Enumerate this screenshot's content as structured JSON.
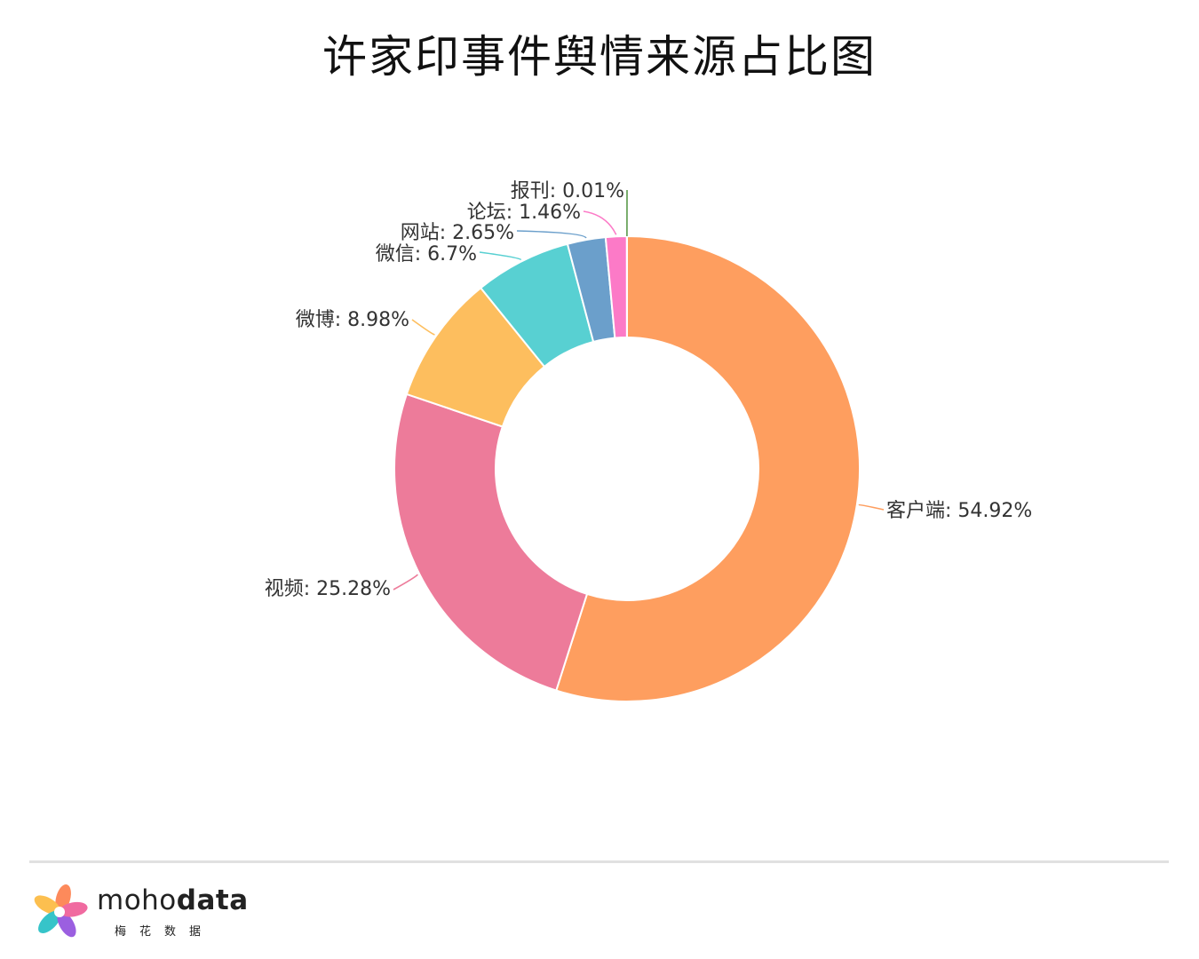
{
  "chart_data": {
    "type": "pie",
    "title": "许家印事件舆情来源占比图",
    "slices": [
      {
        "label": "客户端",
        "value": 54.92,
        "display": "54.92%",
        "color": "#fe9e5f"
      },
      {
        "label": "视频",
        "value": 25.28,
        "display": "25.28%",
        "color": "#ed7b9a"
      },
      {
        "label": "微博",
        "value": 8.98,
        "display": "8.98%",
        "color": "#fdbe5e"
      },
      {
        "label": "微信",
        "value": 6.7,
        "display": "6.7%",
        "color": "#58d0d2"
      },
      {
        "label": "网站",
        "value": 2.65,
        "display": "2.65%",
        "color": "#6b9fcb"
      },
      {
        "label": "论坛",
        "value": 1.46,
        "display": "1.46%",
        "color": "#fc7ac7"
      },
      {
        "label": "报刊",
        "value": 0.01,
        "display": "0.01%",
        "color": "#5a9a4a"
      }
    ]
  },
  "footer": {
    "brand_light": "moho",
    "brand_bold": "data",
    "brand_sub": "梅花数据"
  }
}
